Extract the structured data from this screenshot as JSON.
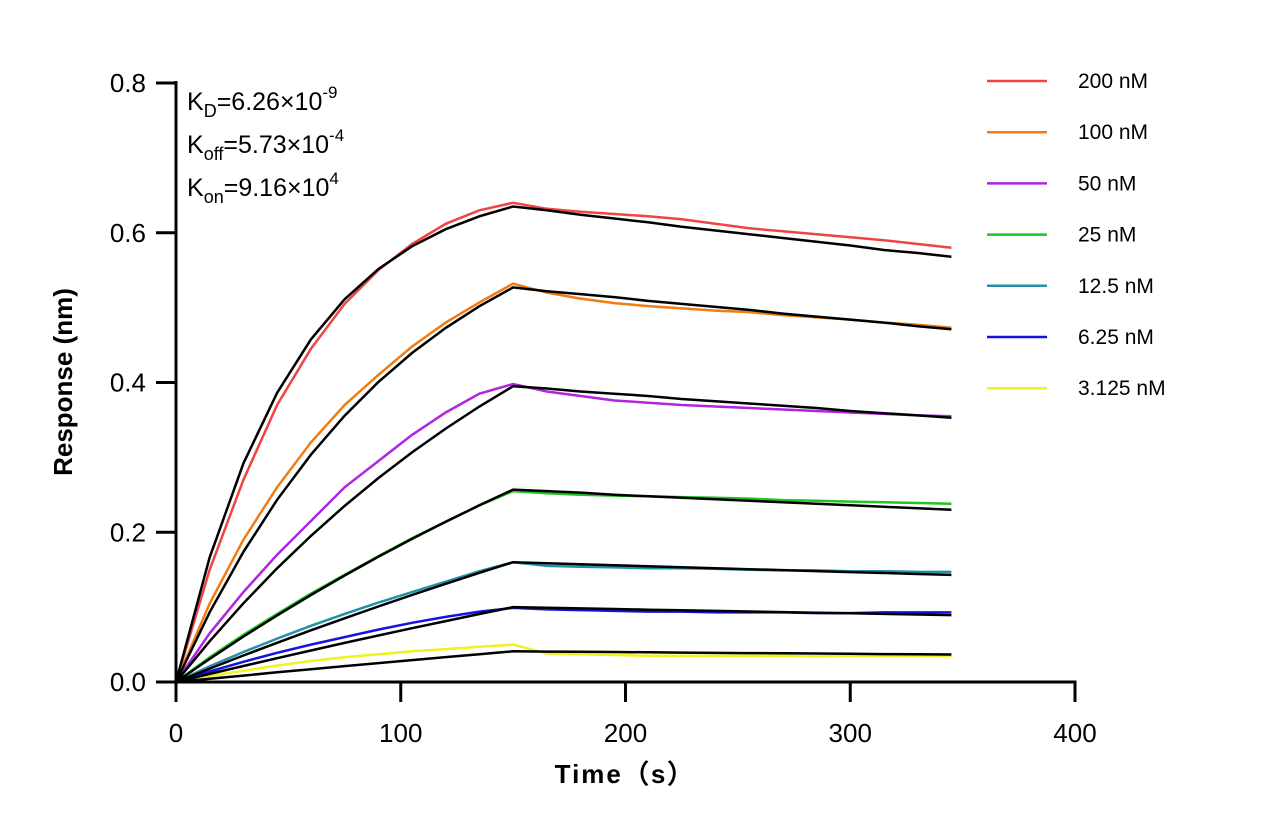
{
  "chart_data": {
    "type": "line",
    "xlabel": "Time（s）",
    "ylabel": "Response (nm)",
    "xlim": [
      0,
      400
    ],
    "ylim": [
      0,
      0.8
    ],
    "xticks": [
      "0",
      "100",
      "200",
      "300",
      "400"
    ],
    "yticks": [
      "0.0",
      "0.2",
      "0.4",
      "0.6",
      "0.8"
    ],
    "grid": false,
    "legend_placement": "right",
    "fit_color": "#000000",
    "annotations": [
      {
        "main": "K",
        "sub": "D",
        "eq": "=6.26×10",
        "sup": "-9"
      },
      {
        "main": "K",
        "sub": "off",
        "eq": "=5.73×10",
        "sup": "-4"
      },
      {
        "main": "K",
        "sub": "on",
        "eq": "=9.16×10",
        "sup": "4"
      }
    ],
    "x": [
      0,
      15,
      30,
      45,
      60,
      75,
      90,
      105,
      120,
      135,
      150,
      165,
      180,
      195,
      210,
      225,
      240,
      255,
      270,
      285,
      300,
      315,
      330,
      345
    ],
    "series": [
      {
        "name": "200 nM",
        "color": "#ef4444",
        "values": [
          0,
          0.15,
          0.27,
          0.37,
          0.445,
          0.505,
          0.55,
          0.585,
          0.612,
          0.63,
          0.64,
          0.632,
          0.628,
          0.625,
          0.622,
          0.618,
          0.612,
          0.606,
          0.602,
          0.598,
          0.594,
          0.59,
          0.585,
          0.58
        ],
        "fit": [
          0,
          0.1665,
          0.2919,
          0.3863,
          0.4575,
          0.5111,
          0.5514,
          0.5819,
          0.6048,
          0.622,
          0.635,
          0.63,
          0.624,
          0.619,
          0.614,
          0.608,
          0.603,
          0.598,
          0.593,
          0.588,
          0.583,
          0.577,
          0.573,
          0.568
        ]
      },
      {
        "name": "100 nM",
        "color": "#f07c12",
        "values": [
          0,
          0.105,
          0.19,
          0.26,
          0.32,
          0.37,
          0.41,
          0.448,
          0.48,
          0.507,
          0.532,
          0.52,
          0.512,
          0.506,
          0.502,
          0.499,
          0.496,
          0.494,
          0.49,
          0.487,
          0.484,
          0.48,
          0.477,
          0.473
        ],
        "fit": [
          0,
          0.0932,
          0.1738,
          0.2434,
          0.3036,
          0.3556,
          0.4005,
          0.4394,
          0.4729,
          0.5019,
          0.527,
          0.522,
          0.518,
          0.514,
          0.509,
          0.505,
          0.501,
          0.497,
          0.492,
          0.488,
          0.484,
          0.48,
          0.475,
          0.471
        ]
      },
      {
        "name": "50 nM",
        "color": "#b225e0",
        "values": [
          0,
          0.065,
          0.12,
          0.17,
          0.215,
          0.26,
          0.295,
          0.33,
          0.36,
          0.385,
          0.398,
          0.388,
          0.382,
          0.376,
          0.373,
          0.37,
          0.368,
          0.366,
          0.364,
          0.362,
          0.36,
          0.358,
          0.356,
          0.355
        ],
        "fit": [
          0,
          0.0545,
          0.1051,
          0.1519,
          0.1951,
          0.2352,
          0.2723,
          0.3066,
          0.3384,
          0.3679,
          0.395,
          0.392,
          0.388,
          0.385,
          0.382,
          0.378,
          0.375,
          0.372,
          0.369,
          0.366,
          0.362,
          0.359,
          0.356,
          0.353
        ]
      },
      {
        "name": "25 nM",
        "color": "#22c322",
        "values": [
          0,
          0.033,
          0.063,
          0.091,
          0.118,
          0.143,
          0.168,
          0.192,
          0.214,
          0.236,
          0.255,
          0.252,
          0.25,
          0.249,
          0.248,
          0.247,
          0.246,
          0.245,
          0.243,
          0.242,
          0.241,
          0.24,
          0.239,
          0.238
        ],
        "fit": [
          0,
          0.0309,
          0.0606,
          0.089,
          0.1162,
          0.1423,
          0.1672,
          0.1911,
          0.214,
          0.236,
          0.257,
          0.255,
          0.253,
          0.25,
          0.248,
          0.246,
          0.244,
          0.242,
          0.24,
          0.238,
          0.236,
          0.234,
          0.232,
          0.23
        ]
      },
      {
        "name": "12.5 nM",
        "color": "#2591a8",
        "values": [
          0,
          0.021,
          0.04,
          0.058,
          0.075,
          0.091,
          0.106,
          0.12,
          0.134,
          0.148,
          0.16,
          0.155,
          0.154,
          0.153,
          0.152,
          0.152,
          0.151,
          0.15,
          0.149,
          0.149,
          0.148,
          0.148,
          0.147,
          0.147
        ],
        "fit": [
          0,
          0.0179,
          0.0354,
          0.0524,
          0.069,
          0.0851,
          0.1009,
          0.1162,
          0.1312,
          0.1458,
          0.16,
          0.1586,
          0.1573,
          0.1559,
          0.1546,
          0.1533,
          0.152,
          0.1507,
          0.1494,
          0.1481,
          0.1468,
          0.1456,
          0.1443,
          0.1431
        ]
      },
      {
        "name": "6.25 nM",
        "color": "#1414e0",
        "values": [
          0,
          0.014,
          0.027,
          0.039,
          0.05,
          0.06,
          0.07,
          0.079,
          0.087,
          0.094,
          0.099,
          0.097,
          0.096,
          0.095,
          0.094,
          0.094,
          0.093,
          0.093,
          0.093,
          0.092,
          0.092,
          0.093,
          0.093,
          0.093
        ],
        "fit": [
          0,
          0.0108,
          0.0214,
          0.0318,
          0.0421,
          0.0522,
          0.0621,
          0.0718,
          0.0814,
          0.0908,
          0.1,
          0.0991,
          0.0983,
          0.0975,
          0.0966,
          0.0958,
          0.095,
          0.0942,
          0.0934,
          0.0926,
          0.0918,
          0.091,
          0.0902,
          0.0894
        ]
      },
      {
        "name": "3.125 nM",
        "color": "#f2f21e",
        "values": [
          0,
          0.008,
          0.015,
          0.022,
          0.028,
          0.033,
          0.037,
          0.041,
          0.044,
          0.047,
          0.05,
          0.038,
          0.037,
          0.036,
          0.035,
          0.035,
          0.035,
          0.035,
          0.035,
          0.034,
          0.035,
          0.035,
          0.035,
          0.035
        ],
        "fit": [
          0,
          0.0043,
          0.0086,
          0.0129,
          0.017,
          0.0212,
          0.0252,
          0.0293,
          0.0332,
          0.0371,
          0.041,
          0.0406,
          0.0403,
          0.04,
          0.0396,
          0.0393,
          0.0389,
          0.0386,
          0.0383,
          0.038,
          0.0376,
          0.0373,
          0.037,
          0.0367
        ]
      }
    ]
  }
}
